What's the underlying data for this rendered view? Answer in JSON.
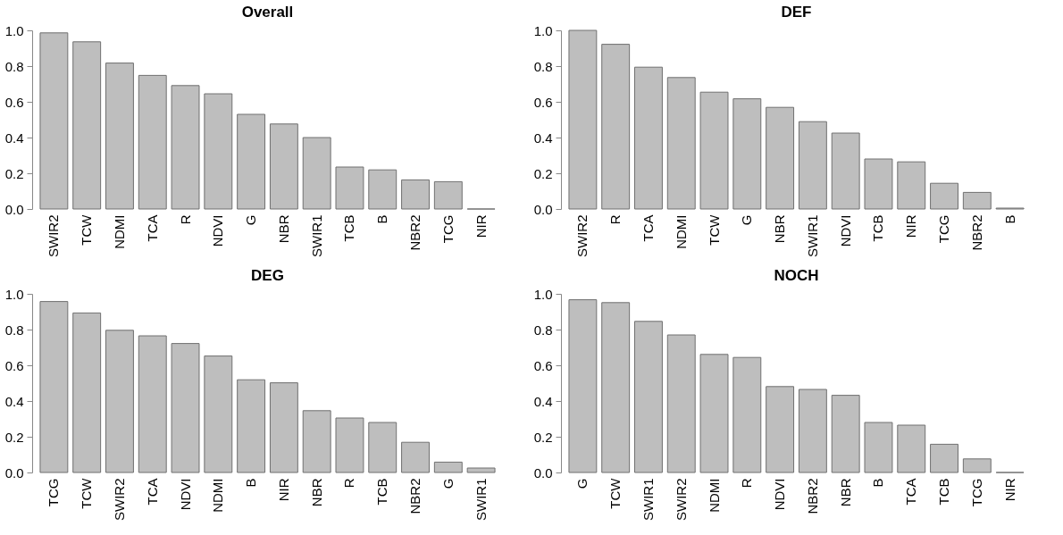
{
  "chart_data": [
    {
      "type": "bar",
      "title": "Overall",
      "categories": [
        "SWIR2",
        "TCW",
        "NDMI",
        "TCA",
        "R",
        "NDVI",
        "G",
        "NBR",
        "SWIR1",
        "TCB",
        "B",
        "NBR2",
        "TCG",
        "NIR"
      ],
      "values": [
        0.986,
        0.936,
        0.817,
        0.748,
        0.691,
        0.645,
        0.53,
        0.476,
        0.4,
        0.235,
        0.219,
        0.163,
        0.153,
        0.0
      ],
      "colors": [
        "#bebebe",
        "#bebebe",
        "#bebebe",
        "#bebebe",
        "#bebebe",
        "#bebebe",
        "#bebebe",
        "#bebebe",
        "#bebebe",
        "#bebebe",
        "#bebebe",
        "#bebebe",
        "#bebebe",
        "#707070"
      ],
      "ylim": [
        0,
        1.0
      ],
      "yticks": [
        {
          "value": 0,
          "label": "0.0"
        },
        {
          "value": 0.2,
          "label": "0.2"
        },
        {
          "value": 0.4,
          "label": "0.4"
        },
        {
          "value": 0.6,
          "label": "0.6"
        },
        {
          "value": 0.8,
          "label": "0.8"
        },
        {
          "value": 1.0,
          "label": "1.0"
        }
      ],
      "grid": false
    },
    {
      "type": "bar",
      "title": "DEF",
      "categories": [
        "SWIR2",
        "R",
        "TCA",
        "NDMI",
        "TCW",
        "G",
        "NBR",
        "SWIR1",
        "NDVI",
        "TCB",
        "NIR",
        "TCG",
        "NBR2",
        "B"
      ],
      "values": [
        1.0,
        0.922,
        0.794,
        0.736,
        0.654,
        0.617,
        0.569,
        0.489,
        0.425,
        0.28,
        0.264,
        0.144,
        0.093,
        0.005
      ],
      "color": "#bebebe",
      "ylim": [
        0,
        1.0
      ],
      "yticks": [
        {
          "value": 0,
          "label": "0.0"
        },
        {
          "value": 0.2,
          "label": "0.2"
        },
        {
          "value": 0.4,
          "label": "0.4"
        },
        {
          "value": 0.6,
          "label": "0.6"
        },
        {
          "value": 0.8,
          "label": "0.8"
        },
        {
          "value": 1.0,
          "label": "1.0"
        }
      ],
      "grid": false
    },
    {
      "type": "bar",
      "title": "DEG",
      "categories": [
        "TCG",
        "TCW",
        "SWIR2",
        "TCA",
        "NDVI",
        "NDMI",
        "B",
        "NIR",
        "NBR",
        "R",
        "TCB",
        "NBR2",
        "G",
        "SWIR1"
      ],
      "values": [
        0.957,
        0.893,
        0.796,
        0.765,
        0.722,
        0.652,
        0.519,
        0.502,
        0.346,
        0.305,
        0.28,
        0.169,
        0.058,
        0.025
      ],
      "color": "#bebebe",
      "ylim": [
        0,
        1.0
      ],
      "yticks": [
        {
          "value": 0,
          "label": "0.0"
        },
        {
          "value": 0.2,
          "label": "0.2"
        },
        {
          "value": 0.4,
          "label": "0.4"
        },
        {
          "value": 0.6,
          "label": "0.6"
        },
        {
          "value": 0.8,
          "label": "0.8"
        },
        {
          "value": 1.0,
          "label": "1.0"
        }
      ],
      "grid": false
    },
    {
      "type": "bar",
      "title": "NOCH",
      "categories": [
        "G",
        "TCW",
        "SWIR1",
        "SWIR2",
        "NDMI",
        "R",
        "NDVI",
        "NBR2",
        "NBR",
        "B",
        "TCA",
        "TCB",
        "TCG",
        "NIR"
      ],
      "values": [
        0.967,
        0.951,
        0.846,
        0.77,
        0.661,
        0.644,
        0.481,
        0.465,
        0.432,
        0.28,
        0.265,
        0.158,
        0.076,
        0.0
      ],
      "colors": [
        "#bebebe",
        "#bebebe",
        "#bebebe",
        "#bebebe",
        "#bebebe",
        "#bebebe",
        "#bebebe",
        "#bebebe",
        "#bebebe",
        "#bebebe",
        "#bebebe",
        "#bebebe",
        "#bebebe",
        "#707070"
      ],
      "ylim": [
        0,
        1.0
      ],
      "yticks": [
        {
          "value": 0,
          "label": "0.0"
        },
        {
          "value": 0.2,
          "label": "0.2"
        },
        {
          "value": 0.4,
          "label": "0.4"
        },
        {
          "value": 0.6,
          "label": "0.6"
        },
        {
          "value": 0.8,
          "label": "0.8"
        },
        {
          "value": 1.0,
          "label": "1.0"
        }
      ],
      "grid": false
    }
  ]
}
